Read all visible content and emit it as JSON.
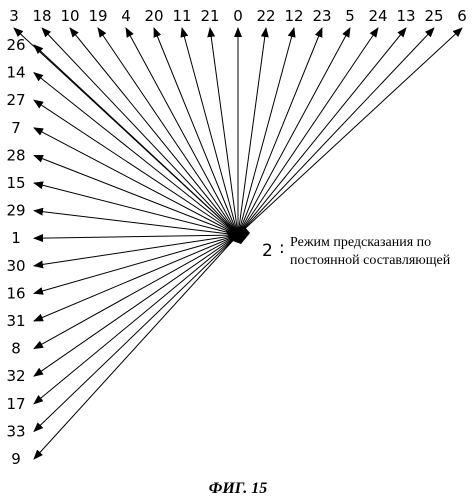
{
  "diagram": {
    "top_modes": [
      "3",
      "18",
      "10",
      "19",
      "4",
      "20",
      "11",
      "21",
      "0",
      "22",
      "12",
      "23",
      "5",
      "24",
      "13",
      "25",
      "6"
    ],
    "left_modes": [
      "26",
      "14",
      "27",
      "7",
      "28",
      "15",
      "29",
      "1",
      "30",
      "16",
      "31",
      "8",
      "32",
      "17",
      "33",
      "9"
    ],
    "dc_mode": {
      "number": "2",
      "separator": ":",
      "text_line1": "Режим предсказания по",
      "text_line2": "постоянной составляющей"
    },
    "caption": "ФИГ. 15"
  }
}
